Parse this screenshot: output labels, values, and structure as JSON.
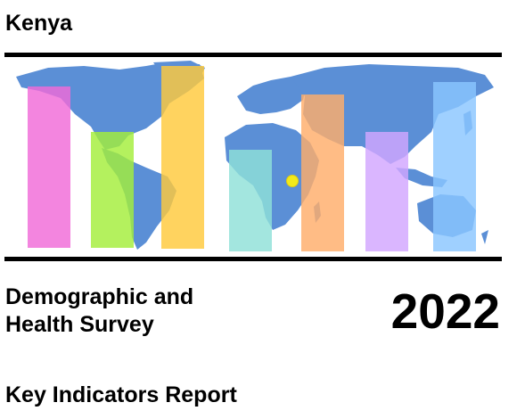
{
  "country": "Kenya",
  "survey_title": [
    "Demographic and",
    "Health Survey"
  ],
  "year": "2022",
  "report_type": "Key Indicators Report",
  "map": {
    "ocean_color": "#ffffff",
    "land_color": "#5b8fd6",
    "marker_color": "#f2ea1a",
    "bar_colors": [
      "#f06ad8",
      "#a3ee3a",
      "#ffc93c",
      "#8fe0d8",
      "#ffad6a",
      "#d2a6ff",
      "#8ac6ff"
    ]
  }
}
